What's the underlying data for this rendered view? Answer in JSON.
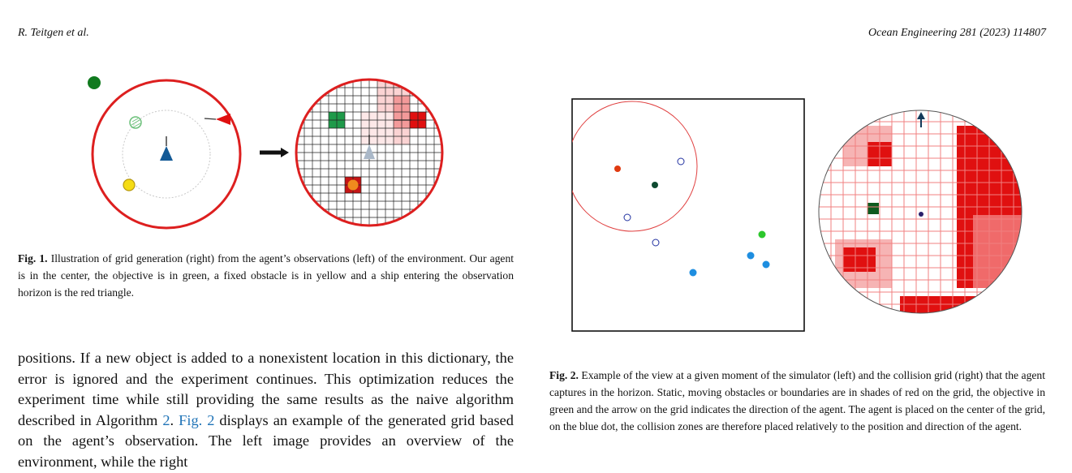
{
  "header": {
    "authors": "R. Teitgen et al.",
    "journal": "Ocean Engineering 281 (2023) 114807"
  },
  "fig1": {
    "label": "Fig. 1.",
    "caption": "Illustration of grid generation (right) from the agent’s observations (left) of the environment. Our agent is in the center, the objective is in green, a fixed obstacle is in yellow and a ship entering the observation horizon is the red triangle."
  },
  "fig2": {
    "label": "Fig. 2.",
    "caption": "Example of the view at a given moment of the simulator (left) and the collision grid (right) that the agent captures in the horizon. Static, moving obstacles or boundaries are in shades of red on the grid, the objective in green and the arrow on the grid indicates the direction of the agent. The agent is placed on the center of the grid, on the blue dot, the collision zones are therefore placed relatively to the position and direction of the agent."
  },
  "body": {
    "text_before": "positions. If a new object is added to a nonexistent location in this dictionary, the error is ignored and the experiment continues. This optimization reduces the experiment time while still providing the same results as the naive algorithm described in Algorithm ",
    "alg_ref": "2",
    "mid": ". ",
    "fig_ref": "Fig. 2",
    "text_after": " displays an example of the generated grid based on the agent’s observation. The left image provides an overview of the environment, while the right"
  },
  "colors": {
    "objective": "#1e8a2e",
    "obstacle": "#f5dc14",
    "ship": "#e01010",
    "agent": "#145a96",
    "horizon": "#dd1f1f",
    "link": "#1f73b7"
  }
}
